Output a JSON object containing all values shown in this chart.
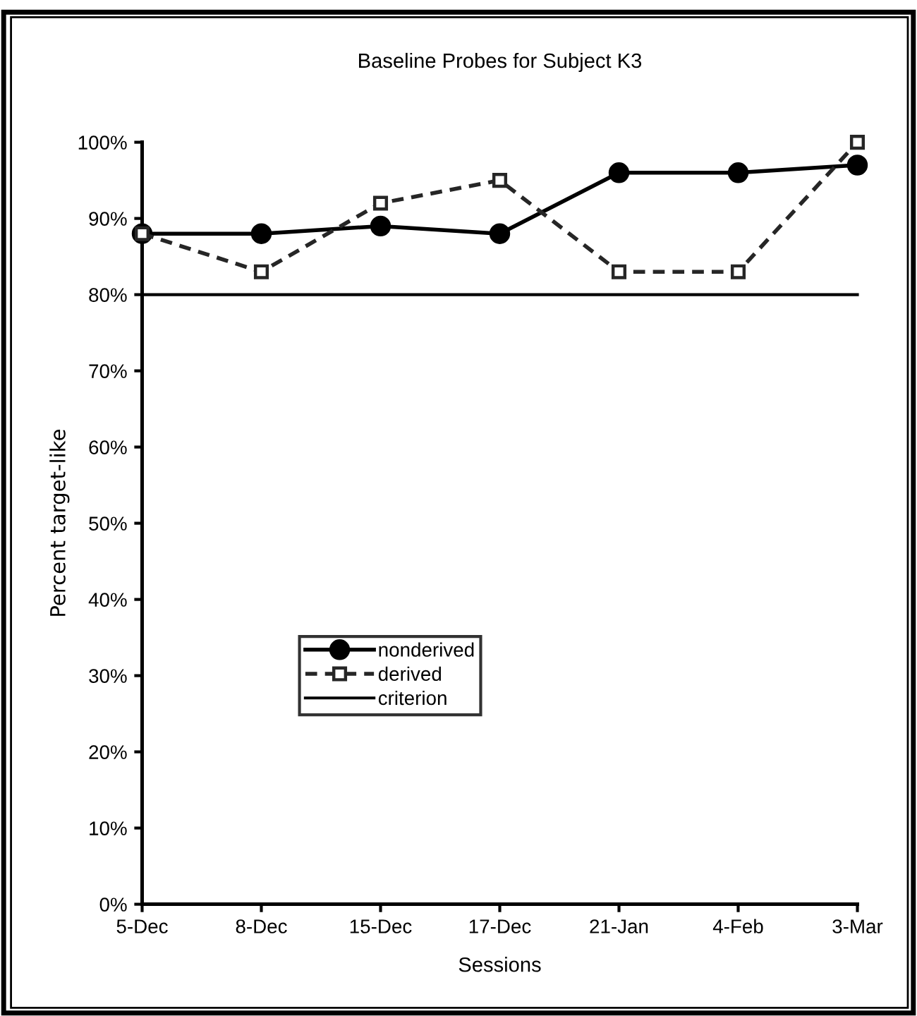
{
  "chart_data": {
    "type": "line",
    "title": "Baseline Probes for Subject K3",
    "xlabel": "Sessions",
    "ylabel": "Percent target-like",
    "categories": [
      "5-Dec",
      "8-Dec",
      "15-Dec",
      "17-Dec",
      "21-Jan",
      "4-Feb",
      "3-Mar"
    ],
    "series": [
      {
        "name": "nonderived",
        "color": "#000000",
        "values": [
          88,
          88,
          89,
          88,
          96,
          96,
          97
        ],
        "marker": "circle",
        "line_style": "solid"
      },
      {
        "name": "derived",
        "color": "#262626",
        "values": [
          88,
          83,
          92,
          95,
          83,
          83,
          100
        ],
        "marker": "square",
        "line_style": "dashed"
      },
      {
        "name": "criterion",
        "color": "#000000",
        "values": [
          80,
          80,
          80,
          80,
          80,
          80,
          80
        ],
        "marker": "none",
        "line_style": "solid"
      }
    ],
    "ylim": [
      0,
      100
    ],
    "yticks": [
      {
        "value": 0,
        "label": "0%"
      },
      {
        "value": 10,
        "label": "10%"
      },
      {
        "value": 20,
        "label": "20%"
      },
      {
        "value": 30,
        "label": "30%"
      },
      {
        "value": 40,
        "label": "40%"
      },
      {
        "value": 50,
        "label": "50%"
      },
      {
        "value": 60,
        "label": "60%"
      },
      {
        "value": 70,
        "label": "70%"
      },
      {
        "value": 80,
        "label": "80%"
      },
      {
        "value": 90,
        "label": "90%"
      },
      {
        "value": 100,
        "label": "100%"
      }
    ],
    "grid": false,
    "legend": "center left"
  }
}
